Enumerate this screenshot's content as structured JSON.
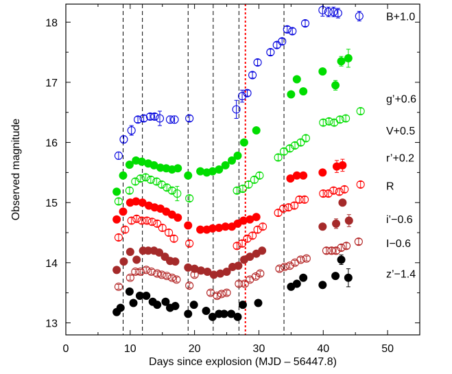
{
  "chart_data": {
    "type": "scatter",
    "xlabel": "Days since explosion (MJD – 56447.8)",
    "ylabel": "Observed magnitude",
    "xlim": [
      0,
      55
    ],
    "ylim": [
      18.3,
      12.8
    ],
    "y_inverted": true,
    "x_ticks": [
      0,
      10,
      20,
      30,
      40,
      50
    ],
    "y_ticks": [
      13,
      14,
      15,
      16,
      17,
      18
    ],
    "vlines": [
      {
        "x": 8.9,
        "color": "#000000",
        "style": "dashed"
      },
      {
        "x": 11.9,
        "color": "#000000",
        "style": "dashed"
      },
      {
        "x": 19.0,
        "color": "#000000",
        "style": "dashed"
      },
      {
        "x": 22.9,
        "color": "#000000",
        "style": "dashed"
      },
      {
        "x": 26.9,
        "color": "#000000",
        "style": "dashed"
      },
      {
        "x": 27.9,
        "color": "#ff0000",
        "style": "dotted"
      },
      {
        "x": 33.9,
        "color": "#000000",
        "style": "dashed"
      }
    ],
    "series": [
      {
        "name": "z’−1.4",
        "color": "#000000",
        "marker": "filled",
        "label_y": 13.82,
        "x": [
          7.9,
          8.5,
          9.9,
          10.5,
          11.5,
          12.5,
          13.5,
          14.2,
          15.5,
          16.2,
          17.0,
          19.0,
          19.9,
          21.8,
          22.8,
          23.8,
          24.6,
          25.7,
          26.7,
          27.5,
          29.9,
          35.0,
          35.9,
          36.9,
          39.9,
          41.9,
          42.8,
          43.9
        ],
        "y": [
          13.18,
          13.25,
          13.52,
          13.33,
          13.45,
          13.45,
          13.35,
          13.3,
          13.35,
          13.25,
          13.28,
          13.15,
          13.3,
          13.2,
          13.1,
          13.15,
          13.15,
          13.15,
          13.1,
          13.3,
          13.33,
          13.6,
          13.65,
          13.75,
          13.63,
          13.78,
          14.05,
          13.75
        ],
        "err": [
          0,
          0,
          0,
          0,
          0,
          0,
          0,
          0,
          0,
          0,
          0,
          0,
          0,
          0,
          0,
          0,
          0,
          0,
          0,
          0,
          0,
          0,
          0,
          0,
          0.05,
          0.05,
          0.08,
          0.15
        ]
      },
      {
        "name": "I−0.6",
        "color": "#b22222",
        "marker": "open",
        "label_y": 14.33,
        "x": [
          8.2,
          10.0,
          10.8,
          11.6,
          12.5,
          13.3,
          14.2,
          14.9,
          15.7,
          16.5,
          17.2,
          19.2,
          20.0,
          22.5,
          23.5,
          24.2,
          25.0,
          26.9,
          27.8,
          28.6,
          29.5,
          30.2,
          33.2,
          34.0,
          34.8,
          35.6,
          36.5,
          37.4,
          40.5,
          41.3,
          42.0,
          42.8,
          43.6,
          45.5
        ],
        "y": [
          13.6,
          13.75,
          13.85,
          13.85,
          13.88,
          13.85,
          13.82,
          13.8,
          13.78,
          13.75,
          13.72,
          13.62,
          13.8,
          13.5,
          13.45,
          13.48,
          13.5,
          13.65,
          13.65,
          13.72,
          13.77,
          13.82,
          13.9,
          13.93,
          13.95,
          14.0,
          14.05,
          14.07,
          14.2,
          14.2,
          14.2,
          14.25,
          14.28,
          14.35
        ],
        "err": [
          0.04,
          0.04,
          0.04,
          0.04,
          0.04,
          0.04,
          0.04,
          0.04,
          0.04,
          0.04,
          0.04,
          0.04,
          0.04,
          0.04,
          0.04,
          0.04,
          0.04,
          0.04,
          0.04,
          0.04,
          0.04,
          0.04,
          0.04,
          0.04,
          0.04,
          0.04,
          0.04,
          0.04,
          0.05,
          0.05,
          0.05,
          0.05,
          0.05,
          0.05
        ]
      },
      {
        "name": "i’−0.6",
        "color": "#a52a2a",
        "marker": "filled",
        "label_y": 14.73,
        "x": [
          7.9,
          9.0,
          10.0,
          11.0,
          12.0,
          12.8,
          13.7,
          14.5,
          15.4,
          16.2,
          17.0,
          19.0,
          20.0,
          21.0,
          22.0,
          23.0,
          24.0,
          25.0,
          25.9,
          26.8,
          27.7,
          28.6,
          29.6,
          30.5,
          39.9,
          42.0,
          43.0,
          44.0
        ],
        "y": [
          13.88,
          14.02,
          14.18,
          14.05,
          14.2,
          14.2,
          14.2,
          14.17,
          14.1,
          14.03,
          14.02,
          13.92,
          13.9,
          13.87,
          13.85,
          13.8,
          13.82,
          13.85,
          13.93,
          13.95,
          14.05,
          14.1,
          14.15,
          14.2,
          14.6,
          14.65,
          15.0,
          14.7
        ],
        "err": [
          0,
          0,
          0,
          0,
          0,
          0,
          0,
          0,
          0,
          0,
          0,
          0,
          0,
          0,
          0,
          0,
          0,
          0,
          0,
          0,
          0,
          0,
          0,
          0,
          0.05,
          0.08,
          0.05,
          0.1
        ]
      },
      {
        "name": "R",
        "color": "#ff0000",
        "marker": "open",
        "label_y": 15.28,
        "x": [
          8.2,
          9.2,
          10.2,
          11.0,
          11.8,
          12.6,
          13.4,
          14.2,
          15.0,
          16.0,
          16.8,
          19.2,
          26.6,
          27.4,
          28.2,
          29.0,
          29.8,
          30.6,
          33.0,
          33.8,
          34.6,
          35.5,
          36.3,
          37.1,
          40.0,
          40.8,
          41.6,
          42.5,
          43.3,
          45.8
        ],
        "y": [
          14.42,
          14.55,
          14.7,
          14.73,
          14.7,
          14.7,
          14.68,
          14.65,
          14.58,
          14.5,
          14.4,
          14.32,
          14.28,
          14.32,
          14.4,
          14.45,
          14.55,
          14.6,
          14.83,
          14.9,
          14.92,
          14.95,
          15.05,
          15.05,
          15.15,
          15.15,
          15.2,
          15.18,
          15.22,
          15.3
        ],
        "err": [
          0.05,
          0.05,
          0.05,
          0.05,
          0.05,
          0.05,
          0.05,
          0.05,
          0.05,
          0.05,
          0.05,
          0.05,
          0.05,
          0.05,
          0.05,
          0.05,
          0.05,
          0.05,
          0.05,
          0.05,
          0.05,
          0.05,
          0.05,
          0.05,
          0.05,
          0.05,
          0.05,
          0.05,
          0.05,
          0.05
        ]
      },
      {
        "name": "r’+0.2",
        "color": "#ff0000",
        "marker": "filled",
        "label_y": 15.75,
        "x": [
          7.9,
          8.9,
          10.0,
          10.9,
          11.9,
          12.9,
          13.8,
          14.7,
          15.6,
          16.5,
          17.4,
          19.0,
          20.9,
          21.9,
          22.8,
          23.8,
          24.8,
          25.8,
          26.7,
          27.6,
          28.6,
          29.6,
          34.9,
          35.9,
          36.9,
          39.9,
          42.1,
          43.0
        ],
        "y": [
          14.72,
          14.85,
          15.0,
          15.02,
          15.0,
          14.95,
          14.92,
          14.9,
          14.85,
          14.8,
          14.75,
          14.62,
          14.55,
          14.55,
          14.57,
          14.58,
          14.6,
          14.6,
          14.65,
          14.7,
          14.72,
          14.76,
          15.4,
          15.45,
          15.45,
          15.5,
          15.6,
          15.62
        ],
        "err": [
          0,
          0,
          0,
          0,
          0,
          0,
          0,
          0,
          0,
          0,
          0,
          0,
          0,
          0,
          0,
          0,
          0,
          0,
          0,
          0,
          0,
          0,
          0,
          0,
          0,
          0.05,
          0.1,
          0.1
        ]
      },
      {
        "name": "V+0.5",
        "color": "#00dd00",
        "marker": "open",
        "label_y": 16.2,
        "x": [
          8.2,
          9.9,
          10.8,
          11.6,
          12.4,
          13.2,
          14.1,
          14.9,
          15.7,
          16.5,
          17.3,
          19.2,
          26.6,
          27.5,
          28.4,
          29.3,
          30.1,
          33.0,
          33.9,
          34.8,
          35.6,
          36.5,
          37.3,
          40.0,
          40.9,
          41.7,
          42.6,
          43.5,
          45.8
        ],
        "y": [
          15.02,
          15.2,
          15.35,
          15.4,
          15.42,
          15.38,
          15.35,
          15.3,
          15.25,
          15.2,
          15.15,
          15.07,
          15.2,
          15.23,
          15.3,
          15.38,
          15.45,
          15.75,
          15.85,
          15.9,
          15.95,
          16.0,
          16.07,
          16.33,
          16.35,
          16.33,
          16.38,
          16.4,
          16.52
        ],
        "err": [
          0.05,
          0.05,
          0.05,
          0.05,
          0.05,
          0.05,
          0.05,
          0.05,
          0.05,
          0.05,
          0.12,
          0.05,
          0.05,
          0.05,
          0.05,
          0.05,
          0.05,
          0.05,
          0.05,
          0.05,
          0.05,
          0.05,
          0.05,
          0.05,
          0.05,
          0.05,
          0.05,
          0.05,
          0.05
        ]
      },
      {
        "name": "g’+0.6",
        "color": "#00dd00",
        "marker": "filled",
        "label_y": 16.73,
        "x": [
          7.9,
          8.9,
          9.9,
          10.9,
          11.8,
          12.8,
          13.7,
          14.7,
          15.6,
          16.5,
          17.4,
          19.0,
          20.9,
          21.9,
          22.8,
          23.8,
          24.8,
          25.8,
          26.7,
          27.7,
          29.6,
          35.0,
          35.9,
          36.9,
          39.9,
          41.9,
          42.8,
          43.9
        ],
        "y": [
          15.18,
          15.45,
          15.63,
          15.7,
          15.68,
          15.65,
          15.62,
          15.58,
          15.57,
          15.55,
          15.57,
          15.45,
          15.52,
          15.5,
          15.52,
          15.55,
          15.62,
          15.7,
          15.78,
          16.0,
          16.2,
          16.8,
          17.05,
          16.85,
          17.18,
          16.95,
          17.35,
          17.4
        ],
        "err": [
          0,
          0,
          0,
          0,
          0,
          0,
          0,
          0,
          0,
          0,
          0,
          0,
          0,
          0,
          0,
          0,
          0,
          0,
          0,
          0,
          0,
          0,
          0,
          0,
          0.05,
          0.08,
          0.08,
          0.15
        ]
      },
      {
        "name": "B+1.0",
        "color": "#0000dd",
        "marker": "open",
        "label_y": 18.1,
        "x": [
          8.2,
          9.0,
          10.2,
          11.2,
          12.1,
          13.1,
          13.8,
          14.6,
          16.2,
          16.9,
          19.2,
          26.5,
          27.4,
          28.2,
          29.0,
          29.8,
          31.8,
          32.8,
          33.6,
          34.4,
          35.2,
          37.2,
          39.9,
          40.8,
          41.6,
          42.3,
          45.6
        ],
        "y": [
          15.78,
          16.05,
          16.2,
          16.38,
          16.4,
          16.43,
          16.43,
          16.4,
          16.38,
          16.38,
          16.4,
          16.55,
          16.77,
          16.82,
          17.12,
          17.33,
          17.5,
          17.62,
          17.68,
          17.88,
          17.85,
          17.98,
          18.2,
          18.17,
          18.17,
          18.15,
          18.1
        ],
        "err": [
          0.06,
          0.06,
          0.08,
          0.05,
          0.05,
          0.05,
          0.05,
          0.12,
          0.06,
          0.06,
          0.05,
          0.15,
          0.1,
          0.05,
          0.05,
          0.05,
          0.05,
          0.05,
          0.05,
          0.05,
          0.05,
          0.05,
          0.1,
          0.08,
          0.08,
          0.08,
          0.08
        ]
      }
    ]
  }
}
